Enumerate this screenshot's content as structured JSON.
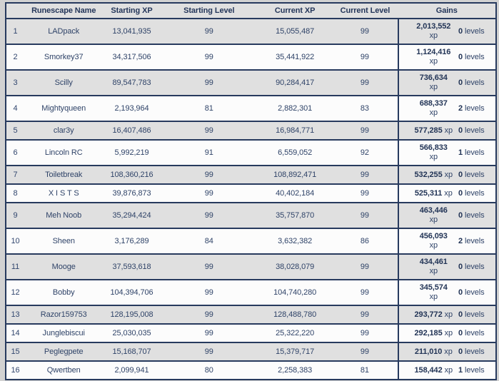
{
  "table": {
    "header": {
      "rank": "",
      "name": "Runescape Name",
      "starting_xp": "Starting XP",
      "starting_level": "Starting Level",
      "current_xp": "Current XP",
      "current_level": "Current Level",
      "gains": "Gains"
    },
    "units": {
      "xp": "xp",
      "levels": "levels"
    },
    "rows": [
      {
        "rank": "1",
        "name": "LADpack",
        "starting_xp": "13,041,935",
        "starting_level": "99",
        "current_xp": "15,055,487",
        "current_level": "99",
        "gains_xp": "2,013,552",
        "gains_levels": "0",
        "xp_wrapped": true
      },
      {
        "rank": "2",
        "name": "Smorkey37",
        "starting_xp": "34,317,506",
        "starting_level": "99",
        "current_xp": "35,441,922",
        "current_level": "99",
        "gains_xp": "1,124,416",
        "gains_levels": "0",
        "xp_wrapped": true
      },
      {
        "rank": "3",
        "name": "Scilly",
        "starting_xp": "89,547,783",
        "starting_level": "99",
        "current_xp": "90,284,417",
        "current_level": "99",
        "gains_xp": "736,634",
        "gains_levels": "0",
        "xp_wrapped": true
      },
      {
        "rank": "4",
        "name": "Mightyqueen",
        "starting_xp": "2,193,964",
        "starting_level": "81",
        "current_xp": "2,882,301",
        "current_level": "83",
        "gains_xp": "688,337",
        "gains_levels": "2",
        "xp_wrapped": true
      },
      {
        "rank": "5",
        "name": "clar3y",
        "starting_xp": "16,407,486",
        "starting_level": "99",
        "current_xp": "16,984,771",
        "current_level": "99",
        "gains_xp": "577,285",
        "gains_levels": "0",
        "xp_wrapped": false
      },
      {
        "rank": "6",
        "name": "Lincoln RC",
        "starting_xp": "5,992,219",
        "starting_level": "91",
        "current_xp": "6,559,052",
        "current_level": "92",
        "gains_xp": "566,833",
        "gains_levels": "1",
        "xp_wrapped": true
      },
      {
        "rank": "7",
        "name": "Toiletbreak",
        "starting_xp": "108,360,216",
        "starting_level": "99",
        "current_xp": "108,892,471",
        "current_level": "99",
        "gains_xp": "532,255",
        "gains_levels": "0",
        "xp_wrapped": false
      },
      {
        "rank": "8",
        "name": "X I S T S",
        "starting_xp": "39,876,873",
        "starting_level": "99",
        "current_xp": "40,402,184",
        "current_level": "99",
        "gains_xp": "525,311",
        "gains_levels": "0",
        "xp_wrapped": false
      },
      {
        "rank": "9",
        "name": "Meh Noob",
        "starting_xp": "35,294,424",
        "starting_level": "99",
        "current_xp": "35,757,870",
        "current_level": "99",
        "gains_xp": "463,446",
        "gains_levels": "0",
        "xp_wrapped": true
      },
      {
        "rank": "10",
        "name": "Sheen",
        "starting_xp": "3,176,289",
        "starting_level": "84",
        "current_xp": "3,632,382",
        "current_level": "86",
        "gains_xp": "456,093",
        "gains_levels": "2",
        "xp_wrapped": true
      },
      {
        "rank": "11",
        "name": "Mooge",
        "starting_xp": "37,593,618",
        "starting_level": "99",
        "current_xp": "38,028,079",
        "current_level": "99",
        "gains_xp": "434,461",
        "gains_levels": "0",
        "xp_wrapped": true
      },
      {
        "rank": "12",
        "name": "Bobby",
        "starting_xp": "104,394,706",
        "starting_level": "99",
        "current_xp": "104,740,280",
        "current_level": "99",
        "gains_xp": "345,574",
        "gains_levels": "0",
        "xp_wrapped": true
      },
      {
        "rank": "13",
        "name": "Razor159753",
        "starting_xp": "128,195,008",
        "starting_level": "99",
        "current_xp": "128,488,780",
        "current_level": "99",
        "gains_xp": "293,772",
        "gains_levels": "0",
        "xp_wrapped": false
      },
      {
        "rank": "14",
        "name": "Junglebiscui",
        "starting_xp": "25,030,035",
        "starting_level": "99",
        "current_xp": "25,322,220",
        "current_level": "99",
        "gains_xp": "292,185",
        "gains_levels": "0",
        "xp_wrapped": false
      },
      {
        "rank": "15",
        "name": "Peglegpete",
        "starting_xp": "15,168,707",
        "starting_level": "99",
        "current_xp": "15,379,717",
        "current_level": "99",
        "gains_xp": "211,010",
        "gains_levels": "0",
        "xp_wrapped": false
      },
      {
        "rank": "16",
        "name": "Qwertben",
        "starting_xp": "2,099,941",
        "starting_level": "80",
        "current_xp": "2,258,383",
        "current_level": "81",
        "gains_xp": "158,442",
        "gains_levels": "1",
        "xp_wrapped": false
      }
    ]
  },
  "colors": {
    "border_navy": "#273a5e",
    "header_text": "#24365a",
    "body_text": "#2f4368",
    "row_alt_bg": "#e0e0e0",
    "row_bg": "#fcfcfc",
    "page_bg": "#d2d2d2"
  }
}
